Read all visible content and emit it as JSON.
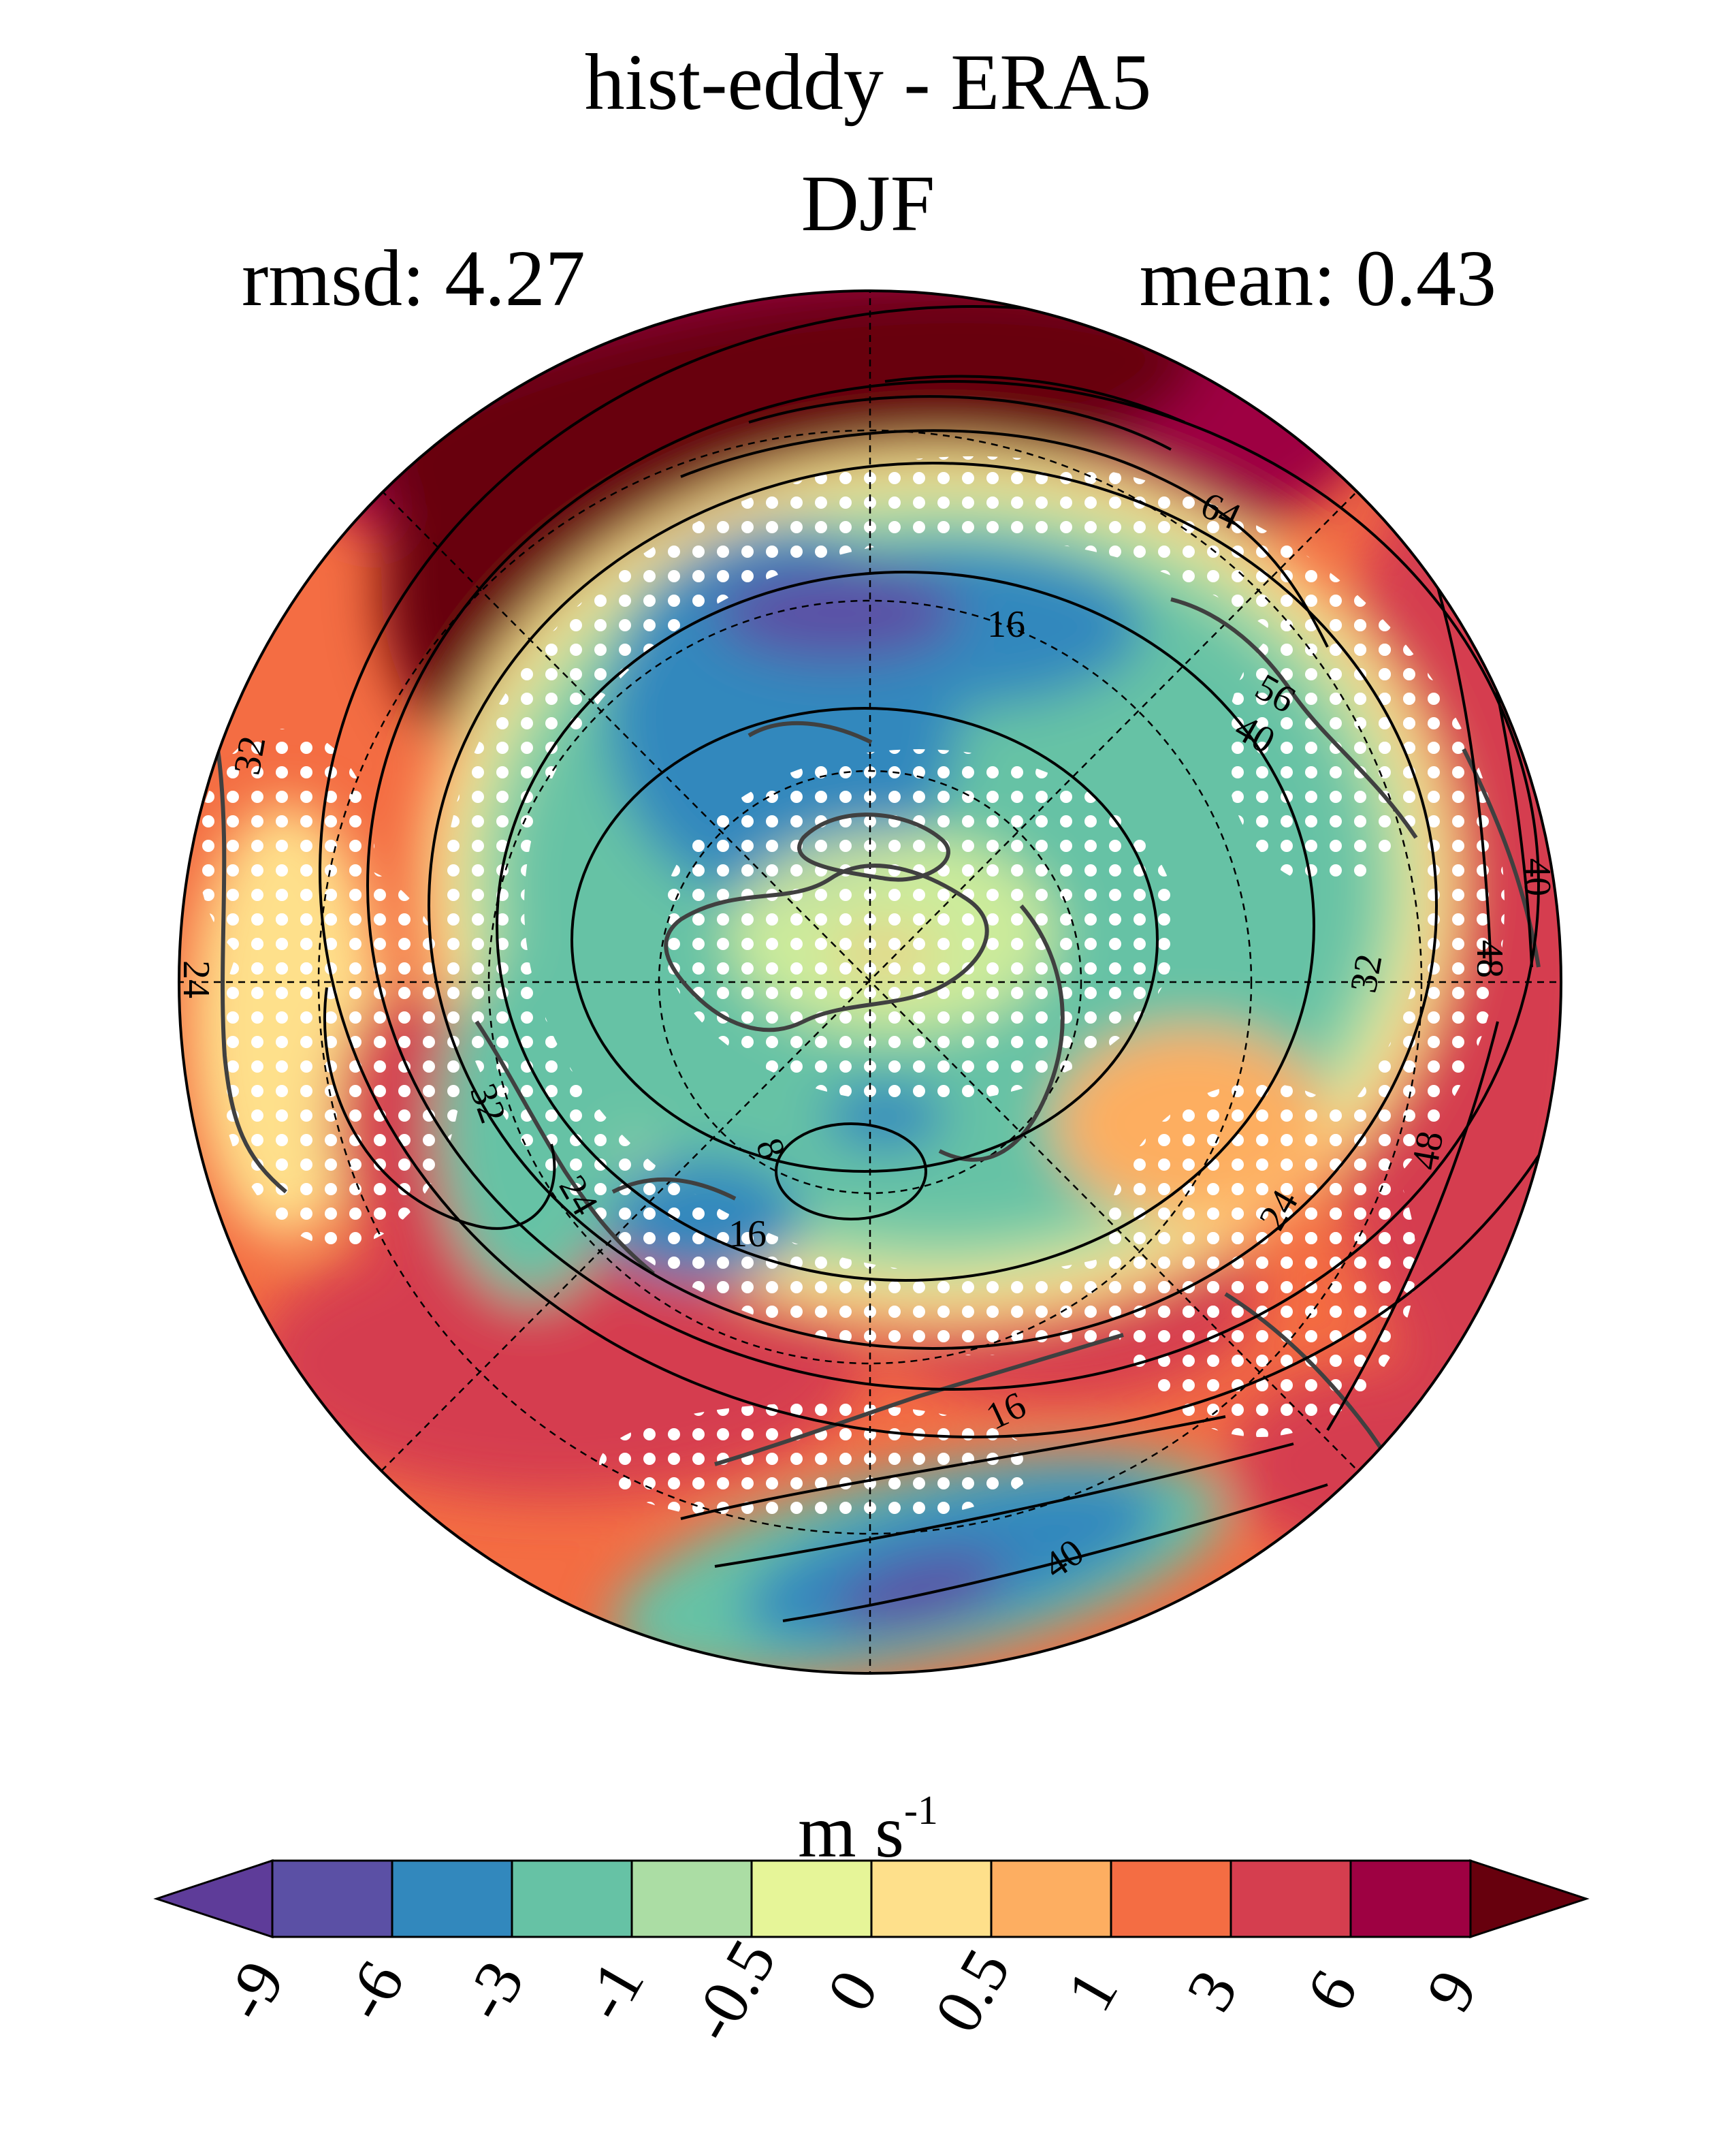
{
  "title": "hist-eddy - ERA5",
  "season": "DJF",
  "stats": {
    "rmsd_label": "rmsd: 4.27",
    "mean_label": "mean: 0.43"
  },
  "map": {
    "projection": "north-polar-stereographic",
    "variable": "eddy-driven wind bias (filled) with model wind (contours)",
    "contour_labels": [
      "64",
      "56",
      "40",
      "16",
      "32",
      "24",
      "48",
      "40",
      "32",
      "8",
      "16",
      "24",
      "32",
      "24",
      "48",
      "16",
      "40"
    ],
    "stippling": "white dots mark significant differences",
    "colors": {
      "land_outline": "#404040",
      "gridline": "#000000",
      "stipple": "#ffffff"
    }
  },
  "colorbar": {
    "unit_base": "m s",
    "unit_exp": "-1",
    "ticks": [
      "-9",
      "-6",
      "-3",
      "-1",
      "-0.5",
      "0",
      "0.5",
      "1",
      "3",
      "6",
      "9"
    ],
    "colors": [
      "#5e3c99",
      "#5b50a5",
      "#3288bd",
      "#66c2a5",
      "#abdda4",
      "#e6f598",
      "#fee08b",
      "#fdae61",
      "#f46d43",
      "#d53e4f",
      "#9e0142",
      "#67000d"
    ]
  }
}
